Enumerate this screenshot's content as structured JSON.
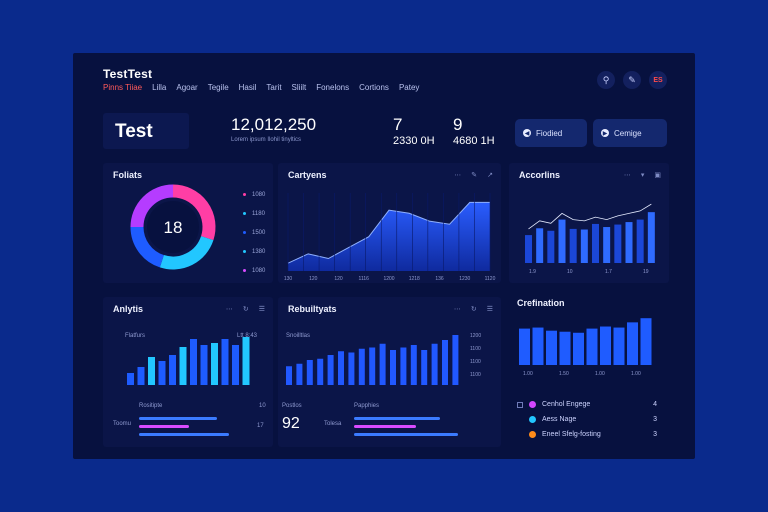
{
  "app": {
    "title": "TestTest"
  },
  "nav": [
    {
      "label": "Pinns Tiiae",
      "active": true
    },
    {
      "label": "Lilla"
    },
    {
      "label": "Agoar"
    },
    {
      "label": "Tegile"
    },
    {
      "label": "Hasil"
    },
    {
      "label": "Tarit"
    },
    {
      "label": "Sliilt"
    },
    {
      "label": "Fonelons"
    },
    {
      "label": "Cortions"
    },
    {
      "label": "Patey"
    }
  ],
  "header_icons": {
    "search": "search-icon",
    "edit": "pen-icon",
    "flag_label": "ES"
  },
  "kpi": {
    "title": "Test"
  },
  "stats": {
    "main_value": "12,012,250",
    "main_sub": "Lorem ipsum   Ilohil tinyltics",
    "a_top": "7",
    "a_value": "2330 0H",
    "b_top": "9",
    "b_value": "4680 1H"
  },
  "buttons": {
    "primary": "Fiodied",
    "secondary": "Cemige"
  },
  "panels": {
    "donut": {
      "title": "Foliats",
      "center": "18"
    },
    "area": {
      "title": "Cartyens"
    },
    "accounts": {
      "title": "Accorlins"
    },
    "analytics": {
      "title": "Anlytis",
      "label_a": "Flatfurs",
      "label_b": "Ltt 8:43",
      "caption": "Rositipte",
      "caption_b": "Toomu",
      "value_a": "17",
      "value_b": "10"
    },
    "rebuild": {
      "title": "Rebuiltyats",
      "label": "Snoilltlas",
      "caption_a": "Postlos",
      "caption_b": "Papphies",
      "caption_c": "Tolesa",
      "big": "92"
    },
    "confirmation": {
      "title": "Crefination"
    }
  },
  "donut_legend": [
    "1080",
    "1180",
    "1500",
    "1380",
    "1080"
  ],
  "area_ticks": [
    "130",
    "120",
    "120",
    "1116",
    "1200",
    "1218",
    "136",
    "1230",
    "1120"
  ],
  "accounts_ticks": [
    "1.9",
    "10",
    "1.7",
    "19"
  ],
  "rebuild_axis": [
    "1200",
    "1100",
    "1100",
    "1100"
  ],
  "confirm_ticks": [
    "1.00",
    "1.50",
    "1.00",
    "1.00"
  ],
  "list": [
    {
      "label": "Cenhol Engege",
      "value": "4",
      "color": "#d246ff"
    },
    {
      "label": "Aess Nage",
      "value": "3",
      "color": "#22c7ff"
    },
    {
      "label": "Eneel Sfelg-fosting",
      "value": "3",
      "color": "#ff8c1a"
    }
  ],
  "chart_data": [
    {
      "type": "pie",
      "title": "Foliats",
      "center_label": "18",
      "values": [
        30,
        25,
        20,
        25
      ],
      "colors": [
        "#ff3ea5",
        "#22c7ff",
        "#1e5cff",
        "#b53cff"
      ]
    },
    {
      "type": "area",
      "title": "Cartyens",
      "values": [
        10,
        22,
        16,
        30,
        44,
        78,
        74,
        64,
        60,
        88,
        88
      ]
    },
    {
      "type": "bar",
      "title": "Accorlins",
      "values": [
        45,
        56,
        52,
        70,
        55,
        54,
        63,
        58,
        62,
        66,
        70,
        82
      ],
      "line": [
        55,
        68,
        64,
        80,
        70,
        68,
        74,
        70,
        76,
        80,
        84,
        95
      ]
    },
    {
      "type": "bar",
      "title": "Anlytis",
      "values": [
        12,
        18,
        28,
        24,
        30,
        38,
        46,
        40,
        42,
        46,
        40,
        48
      ]
    },
    {
      "type": "bar",
      "title": "Rebuiltyats",
      "values": [
        30,
        34,
        40,
        42,
        48,
        54,
        52,
        58,
        60,
        66,
        56,
        60,
        64,
        56,
        66,
        72,
        80
      ]
    },
    {
      "type": "bar",
      "title": "Crefination",
      "values": [
        70,
        72,
        66,
        64,
        62,
        70,
        74,
        72,
        82,
        90
      ]
    }
  ]
}
